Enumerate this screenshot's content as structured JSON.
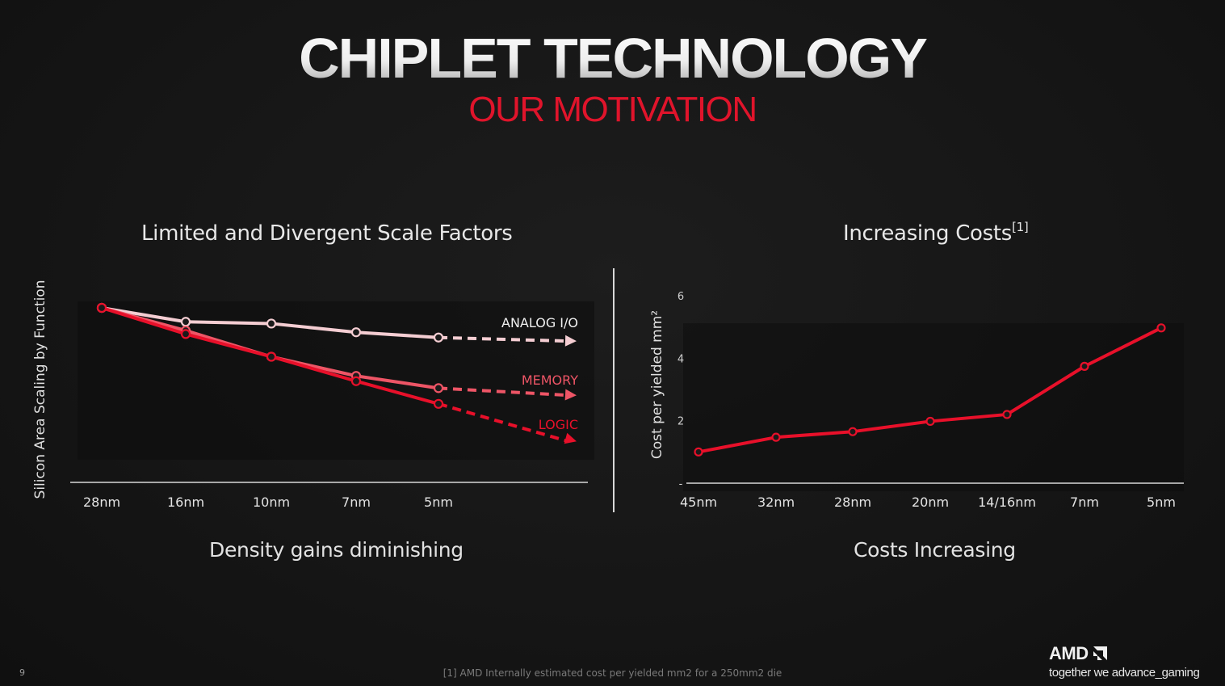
{
  "slide": {
    "title": "CHIPLET TECHNOLOGY",
    "subtitle": "OUR MOTIVATION",
    "page_number": "9",
    "footnote": "[1] AMD Internally estimated cost per yielded mm2 for a 250mm2 die",
    "logo": "AMD",
    "tagline": "together we advance_gaming",
    "colors": {
      "accent": "#e0142b",
      "logic": "#e8102a",
      "memory": "#ee5566",
      "analog": "#f4cdd2"
    }
  },
  "left_panel": {
    "title": "Limited and Divergent Scale Factors",
    "caption": "Density gains diminishing"
  },
  "right_panel": {
    "title": "Increasing Costs",
    "title_sup": "[1]",
    "caption": "Costs Increasing"
  },
  "chart_data": [
    {
      "type": "line",
      "title": "Limited and Divergent Scale Factors",
      "ylabel": "Silicon Area Scaling by Function",
      "xlabel": "",
      "categories": [
        "28nm",
        "16nm",
        "10nm",
        "7nm",
        "5nm"
      ],
      "y_ticks_shown": false,
      "ylim": [
        0,
        1.0
      ],
      "series": [
        {
          "name": "ANALOG I/O",
          "values": [
            1.0,
            0.92,
            0.91,
            0.86,
            0.83
          ],
          "projected_end": 0.81
        },
        {
          "name": "MEMORY",
          "values": [
            1.0,
            0.87,
            0.72,
            0.61,
            0.54
          ],
          "projected_end": 0.5
        },
        {
          "name": "LOGIC",
          "values": [
            1.0,
            0.85,
            0.72,
            0.58,
            0.45
          ],
          "projected_end": 0.24
        }
      ],
      "projection": "dashed arrow beyond 5nm",
      "grid": false,
      "legend": "inline labels at line ends"
    },
    {
      "type": "line",
      "title": "Increasing Costs",
      "ylabel": "Cost per yielded mm²",
      "xlabel": "",
      "categories": [
        "45nm",
        "32nm",
        "28nm",
        "20nm",
        "14/16nm",
        "7nm",
        "5nm"
      ],
      "values": [
        1.0,
        1.47,
        1.65,
        1.98,
        2.2,
        3.74,
        4.97
      ],
      "y_ticks": [
        "6",
        "4",
        "2",
        "-"
      ],
      "ylim": [
        0,
        6
      ],
      "grid": false
    }
  ]
}
